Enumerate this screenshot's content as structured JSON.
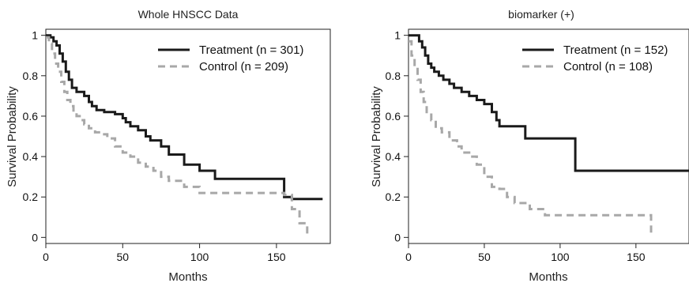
{
  "chart_data": [
    {
      "type": "line",
      "title": "Whole HNSCC Data",
      "xlabel": "Months",
      "ylabel": "Survival Probability",
      "xlim": [
        0,
        185
      ],
      "ylim": [
        -0.03,
        1.03
      ],
      "xticks": [
        "0",
        "50",
        "100",
        "150"
      ],
      "yticks": [
        "0",
        "0.2",
        "0.4",
        "0.6",
        "0.8",
        "1"
      ],
      "legend_position": "top-right",
      "series": [
        {
          "name": "Treatment (n = 301)",
          "color": "#1a1a1a",
          "dash": "solid",
          "x": [
            0,
            3,
            5,
            7,
            9,
            11,
            13,
            15,
            17,
            20,
            25,
            28,
            30,
            33,
            38,
            45,
            50,
            52,
            55,
            60,
            65,
            68,
            75,
            80,
            90,
            100,
            110,
            155,
            160,
            180
          ],
          "y": [
            1.0,
            0.99,
            0.97,
            0.95,
            0.91,
            0.87,
            0.82,
            0.78,
            0.74,
            0.72,
            0.7,
            0.67,
            0.65,
            0.63,
            0.62,
            0.61,
            0.59,
            0.57,
            0.55,
            0.53,
            0.5,
            0.48,
            0.45,
            0.41,
            0.36,
            0.33,
            0.29,
            0.2,
            0.19,
            0.19
          ]
        },
        {
          "name": "Control (n = 209)",
          "color": "#a8a8a8",
          "dash": "dashed",
          "x": [
            0,
            2,
            4,
            6,
            8,
            10,
            12,
            14,
            16,
            18,
            20,
            22,
            25,
            28,
            32,
            36,
            40,
            45,
            50,
            55,
            60,
            65,
            70,
            75,
            80,
            90,
            100,
            150,
            155,
            160,
            165,
            170
          ],
          "y": [
            0.99,
            0.96,
            0.91,
            0.86,
            0.82,
            0.77,
            0.72,
            0.68,
            0.65,
            0.62,
            0.6,
            0.58,
            0.56,
            0.54,
            0.52,
            0.51,
            0.49,
            0.45,
            0.42,
            0.4,
            0.37,
            0.35,
            0.33,
            0.3,
            0.28,
            0.25,
            0.22,
            0.22,
            0.21,
            0.14,
            0.07,
            0.0
          ]
        }
      ]
    },
    {
      "type": "line",
      "title": "biomarker (+)",
      "xlabel": "Months",
      "ylabel": "Survival Probability",
      "xlim": [
        0,
        185
      ],
      "ylim": [
        -0.03,
        1.03
      ],
      "xticks": [
        "0",
        "50",
        "100",
        "150"
      ],
      "yticks": [
        "0",
        "0.2",
        "0.4",
        "0.6",
        "0.8",
        "1"
      ],
      "legend_position": "top-right",
      "series": [
        {
          "name": "Treatment (n = 152)",
          "color": "#1a1a1a",
          "dash": "solid",
          "x": [
            0,
            7,
            9,
            11,
            13,
            15,
            17,
            20,
            23,
            27,
            30,
            35,
            40,
            45,
            50,
            55,
            58,
            60,
            77,
            110,
            185
          ],
          "y": [
            1.0,
            0.97,
            0.94,
            0.9,
            0.86,
            0.84,
            0.82,
            0.8,
            0.78,
            0.76,
            0.74,
            0.72,
            0.7,
            0.68,
            0.66,
            0.62,
            0.58,
            0.55,
            0.49,
            0.33,
            0.33
          ]
        },
        {
          "name": "Control (n = 108)",
          "color": "#a8a8a8",
          "dash": "dashed",
          "x": [
            0,
            2,
            4,
            6,
            8,
            10,
            12,
            15,
            18,
            22,
            27,
            32,
            35,
            40,
            45,
            50,
            55,
            60,
            65,
            70,
            80,
            90,
            100,
            150,
            158,
            160
          ],
          "y": [
            0.97,
            0.9,
            0.84,
            0.78,
            0.72,
            0.67,
            0.62,
            0.58,
            0.54,
            0.52,
            0.48,
            0.45,
            0.42,
            0.4,
            0.36,
            0.3,
            0.25,
            0.24,
            0.2,
            0.17,
            0.14,
            0.11,
            0.11,
            0.11,
            0.11,
            0.0
          ]
        }
      ]
    }
  ]
}
